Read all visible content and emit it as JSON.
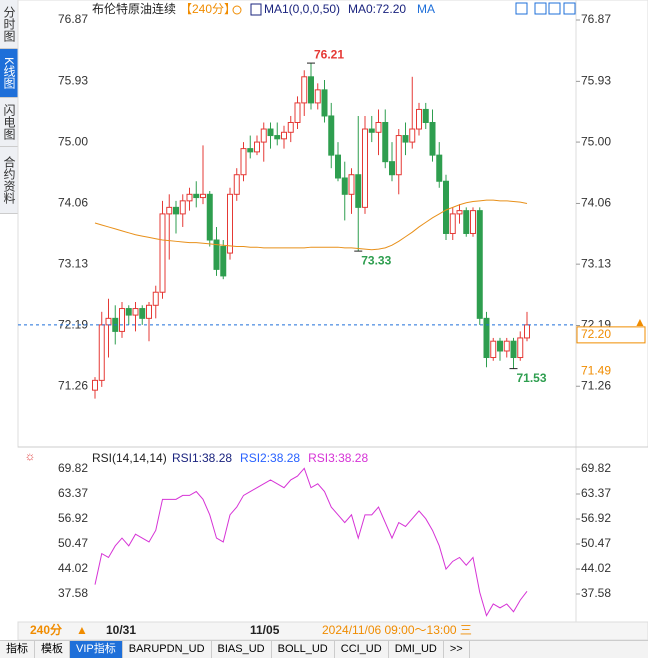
{
  "sidebar": [
    "分时图",
    "K线图",
    "闪电图",
    "合约资料"
  ],
  "footer": {
    "period": "240分",
    "dates": [
      "10/31",
      "11/05"
    ],
    "cursor": "2024/11/06 09:00～13:00 三"
  },
  "tabs": [
    "指标",
    "模板",
    "VIP指标",
    "BARUPDN_UD",
    "BIAS_UD",
    "BOLL_UD",
    "CCI_UD",
    "DMI_UD",
    ">>"
  ],
  "chart_data": [
    {
      "type": "candlestick",
      "title": "布伦特原油连续",
      "period": "【240分】",
      "indicator": "MA1(0,0,0,50)",
      "indicator_value": "MA0:72.20",
      "indicator_name": "MA",
      "up_color": "#e53935",
      "down_color": "#2e9e4f",
      "ylim": [
        70.36,
        76.87
      ],
      "yticks": [
        71.26,
        72.19,
        73.13,
        74.06,
        {
          "value": 75,
          "label": "75.00"
        },
        75.93,
        76.87
      ],
      "open": [
        71.2,
        71.35,
        72.2,
        72.3,
        72.1,
        72.45,
        72.35,
        72.45,
        72.3,
        72.5,
        72.7,
        73.9,
        74.0,
        73.9,
        74.1,
        74.2,
        74.15,
        74.2,
        73.5,
        73.4,
        73.3,
        74.2,
        74.5,
        74.9,
        74.85,
        75.0,
        75.2,
        75.1,
        75.05,
        75.15,
        75.3,
        75.6,
        76.0,
        75.6,
        75.8,
        75.4,
        74.8,
        74.45,
        74.2,
        74.5,
        74.0,
        75.2,
        75.15,
        75.3,
        74.7,
        74.5,
        75.1,
        75.0,
        75.2,
        75.5,
        75.3,
        74.8,
        74.4,
        73.6,
        73.9,
        73.95,
        73.6,
        73.95,
        72.3,
        71.7,
        71.95,
        71.8,
        71.95,
        71.7,
        72.0
      ],
      "high": [
        71.4,
        72.4,
        72.6,
        72.5,
        72.55,
        72.5,
        72.55,
        72.5,
        72.55,
        72.8,
        74.1,
        74.2,
        74.1,
        74.2,
        74.3,
        74.4,
        74.95,
        74.25,
        73.7,
        73.5,
        74.3,
        74.6,
        75.0,
        75.1,
        75.1,
        75.3,
        75.3,
        75.3,
        75.25,
        75.4,
        75.7,
        76.1,
        76.21,
        75.9,
        75.95,
        75.6,
        75.0,
        74.7,
        74.6,
        75.4,
        75.4,
        75.4,
        75.5,
        75.5,
        75.0,
        75.2,
        75.3,
        76.0,
        75.6,
        75.6,
        75.5,
        75.0,
        74.5,
        74.0,
        74.05,
        74.0,
        74.0,
        74.0,
        72.4,
        72.0,
        72.0,
        72.0,
        72.0,
        72.1,
        72.4
      ],
      "low": [
        71.07,
        71.25,
        71.7,
        71.9,
        72.0,
        72.2,
        72.1,
        72.2,
        71.95,
        72.3,
        72.6,
        73.2,
        73.6,
        73.7,
        73.95,
        74.0,
        74.05,
        73.4,
        72.95,
        72.9,
        73.2,
        74.1,
        74.4,
        74.75,
        74.8,
        74.7,
        74.9,
        74.95,
        74.9,
        75.0,
        75.2,
        75.4,
        75.5,
        75.5,
        75.3,
        74.6,
        74.4,
        73.8,
        73.9,
        73.33,
        73.9,
        75.0,
        74.8,
        74.6,
        74.4,
        74.2,
        74.8,
        74.9,
        75.1,
        75.2,
        74.7,
        74.3,
        73.5,
        73.5,
        73.75,
        73.55,
        73.55,
        72.2,
        71.55,
        71.65,
        71.65,
        71.7,
        71.53,
        71.65,
        71.95
      ],
      "close": [
        71.35,
        72.2,
        72.3,
        72.1,
        72.45,
        72.35,
        72.45,
        72.3,
        72.5,
        72.7,
        73.9,
        74.0,
        73.9,
        74.1,
        74.2,
        74.15,
        74.2,
        73.5,
        73.05,
        72.95,
        74.2,
        74.5,
        74.9,
        74.85,
        75.0,
        75.2,
        75.1,
        75.05,
        75.15,
        75.3,
        75.6,
        76.0,
        75.6,
        75.8,
        75.4,
        74.8,
        74.45,
        74.2,
        74.5,
        74.0,
        75.2,
        75.15,
        75.3,
        74.7,
        74.5,
        75.1,
        75.0,
        75.2,
        75.5,
        75.3,
        74.8,
        74.4,
        73.6,
        73.9,
        73.95,
        73.6,
        73.95,
        72.3,
        71.7,
        71.95,
        71.8,
        71.95,
        71.7,
        72.0,
        72.2
      ],
      "ma": {
        "color": "#e8901a",
        "values": [
          73.76,
          73.73,
          73.7,
          73.67,
          73.64,
          73.61,
          73.58,
          73.56,
          73.54,
          73.52,
          73.5,
          73.49,
          73.48,
          73.47,
          73.46,
          73.46,
          73.45,
          73.44,
          73.43,
          73.42,
          73.41,
          73.4,
          73.4,
          73.39,
          73.39,
          73.38,
          73.38,
          73.38,
          73.38,
          73.38,
          73.38,
          73.38,
          73.39,
          73.39,
          73.39,
          73.39,
          73.39,
          73.38,
          73.38,
          73.37,
          73.36,
          73.35,
          73.36,
          73.38,
          73.42,
          73.48,
          73.55,
          73.62,
          73.7,
          73.77,
          73.84,
          73.9,
          73.96,
          74.0,
          74.04,
          74.07,
          74.09,
          74.1,
          74.11,
          74.11,
          74.1,
          74.1,
          74.09,
          74.08,
          74.06
        ]
      },
      "last_price": {
        "value": 72.2,
        "label": "72.20"
      },
      "ma_tag": {
        "value": 71.49,
        "label": "71.49"
      }
    },
    {
      "type": "line",
      "title": "RSI(14,14,14)",
      "legend": [
        {
          "text": "RSI1:38.28",
          "color": "#1a237e"
        },
        {
          "text": "RSI2:38.28",
          "color": "#2962ff"
        },
        {
          "text": "RSI3:38.28",
          "color": "#d633d6"
        }
      ],
      "ylim": [
        30.87,
        73.43
      ],
      "yticks": [
        37.58,
        44.02,
        50.47,
        56.92,
        63.37,
        69.82
      ],
      "series": [
        {
          "color": "#d633d6",
          "values": [
            40,
            48,
            47,
            50,
            52,
            50,
            53,
            52,
            51,
            54,
            62,
            62,
            62,
            63,
            63,
            64,
            62,
            58,
            52,
            51,
            58,
            60,
            63,
            64,
            65,
            66,
            67,
            66,
            65,
            67,
            68,
            70,
            65,
            66,
            64,
            60,
            58,
            56,
            58,
            52,
            58,
            58,
            60,
            56,
            52,
            56,
            55,
            57,
            59,
            57,
            54,
            50,
            44,
            46,
            47,
            45,
            47,
            38,
            32,
            35,
            34,
            35,
            33,
            36,
            38.28
          ]
        }
      ]
    }
  ]
}
